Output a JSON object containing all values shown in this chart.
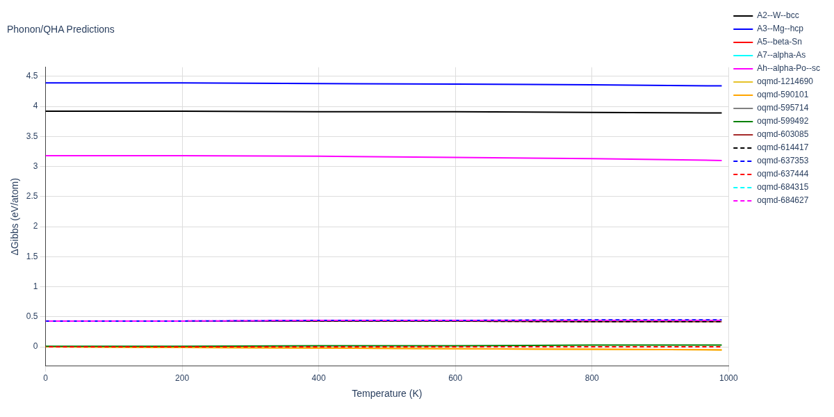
{
  "chart_data": {
    "type": "line",
    "title": "Phonon/QHA Predictions",
    "xlabel": "Temperature (K)",
    "ylabel": "ΔGibbs (eV/atom)",
    "x": [
      0,
      200,
      400,
      600,
      800,
      990
    ],
    "xlim": [
      0,
      1000
    ],
    "xticks": [
      0,
      200,
      400,
      600,
      800,
      1000
    ],
    "ylim": [
      -0.32,
      4.65
    ],
    "yticks": [
      0,
      0.5,
      1,
      1.5,
      2,
      2.5,
      3,
      3.5,
      4,
      4.5
    ],
    "grid": true,
    "legend": "right",
    "marker": "none",
    "series": [
      {
        "name": "A2--W--bcc",
        "color": "#000000",
        "line_style": "solid",
        "values": [
          3.92,
          3.92,
          3.91,
          3.91,
          3.9,
          3.89
        ]
      },
      {
        "name": "A3--Mg--hcp",
        "color": "#0000ff",
        "line_style": "solid",
        "values": [
          4.39,
          4.39,
          4.38,
          4.37,
          4.36,
          4.34
        ]
      },
      {
        "name": "A5--beta-Sn",
        "color": "#ff0000",
        "line_style": "solid",
        "values": [
          null,
          null,
          null,
          null,
          null,
          null
        ]
      },
      {
        "name": "A7--alpha-As",
        "color": "#00ffff",
        "line_style": "solid",
        "values": [
          null,
          null,
          null,
          null,
          null,
          null
        ]
      },
      {
        "name": "Ah--alpha-Po--sc",
        "color": "#ff00ff",
        "line_style": "solid",
        "values": [
          3.18,
          3.18,
          3.17,
          3.15,
          3.13,
          3.1
        ]
      },
      {
        "name": "oqmd-1214690",
        "color": "#e6c229",
        "line_style": "solid",
        "values": [
          0,
          -0.01,
          -0.02,
          -0.03,
          -0.04,
          -0.05
        ]
      },
      {
        "name": "oqmd-590101",
        "color": "#ffa500",
        "line_style": "solid",
        "values": [
          0,
          -0.01,
          -0.02,
          -0.03,
          -0.04,
          -0.05
        ]
      },
      {
        "name": "oqmd-595714",
        "color": "#808080",
        "line_style": "solid",
        "values": [
          null,
          null,
          null,
          null,
          null,
          null
        ]
      },
      {
        "name": "oqmd-599492",
        "color": "#008000",
        "line_style": "solid",
        "values": [
          0.01,
          0.01,
          0.02,
          0.02,
          0.03,
          0.03
        ]
      },
      {
        "name": "oqmd-603085",
        "color": "#a52a2a",
        "line_style": "solid",
        "values": [
          0.43,
          0.43,
          0.43,
          0.43,
          0.42,
          0.42
        ]
      },
      {
        "name": "oqmd-614417",
        "color": "#000000",
        "line_style": "dashed",
        "values": [
          0.43,
          0.43,
          0.43,
          0.43,
          0.42,
          0.42
        ]
      },
      {
        "name": "oqmd-637353",
        "color": "#0000ff",
        "line_style": "dashed",
        "values": [
          0.43,
          0.43,
          0.44,
          0.44,
          0.45,
          0.45
        ]
      },
      {
        "name": "oqmd-637444",
        "color": "#ff0000",
        "line_style": "dashed",
        "values": [
          0,
          0,
          0,
          0,
          0,
          0
        ]
      },
      {
        "name": "oqmd-684315",
        "color": "#00ffff",
        "line_style": "dashed",
        "values": [
          null,
          null,
          null,
          null,
          null,
          null
        ]
      },
      {
        "name": "oqmd-684627",
        "color": "#ff00ff",
        "line_style": "dashed",
        "values": [
          0.43,
          0.43,
          0.44,
          0.44,
          0.44,
          0.44
        ]
      }
    ]
  }
}
